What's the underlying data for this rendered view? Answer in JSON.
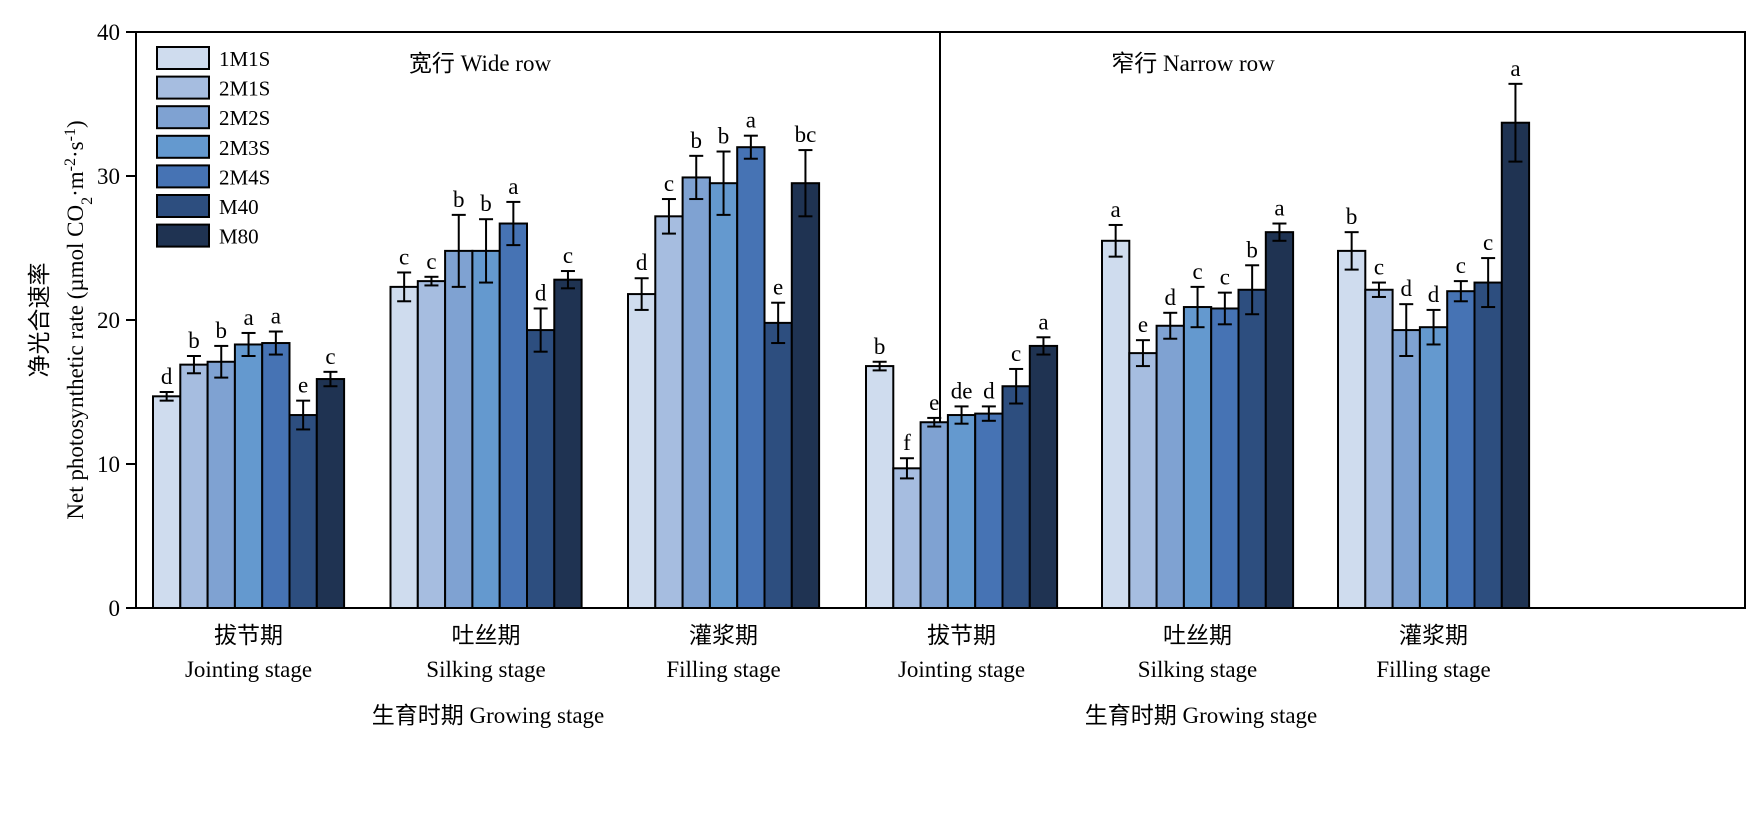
{
  "chart_data": {
    "type": "bar",
    "ylabel_cn": "净光合速率",
    "ylabel_en": "Net photosynthetic rate (µmol CO",
    "ylabel_sub": "2",
    "ylabel_unit_mid": "·m",
    "ylabel_sup1": "-2",
    "ylabel_unit_mid2": "·s",
    "ylabel_sup2": "-1",
    "ylabel_close": ")",
    "ylim": [
      0,
      40
    ],
    "yticks": [
      "0",
      "10",
      "20",
      "30",
      "40"
    ],
    "grid": false,
    "legend_position": "top-left",
    "series_names": [
      "1M1S",
      "2M1S",
      "2M2S",
      "2M3S",
      "2M4S",
      "M40",
      "M80"
    ],
    "colors": [
      "#cfdcee",
      "#a6bde0",
      "#7fa2d2",
      "#6499cf",
      "#4673b4",
      "#2d4e7f",
      "#1f3352"
    ],
    "panels": [
      {
        "title": "宽行 Wide row",
        "xlabel": "生育时期 Growing stage",
        "groups": [
          {
            "label_cn": "拔节期",
            "label_en": "Jointing stage",
            "values": [
              14.7,
              16.9,
              17.1,
              18.3,
              18.4,
              13.4,
              15.9
            ],
            "errors": [
              0.3,
              0.6,
              1.1,
              0.8,
              0.8,
              1.0,
              0.5
            ],
            "letters": [
              "d",
              "b",
              "b",
              "a",
              "a",
              "e",
              "c"
            ]
          },
          {
            "label_cn": "吐丝期",
            "label_en": "Silking stage",
            "values": [
              22.3,
              22.7,
              24.8,
              24.8,
              26.7,
              19.3,
              22.8
            ],
            "errors": [
              1.0,
              0.3,
              2.5,
              2.2,
              1.5,
              1.5,
              0.6
            ],
            "letters": [
              "c",
              "c",
              "b",
              "b",
              "a",
              "d",
              "c"
            ]
          },
          {
            "label_cn": "灌浆期",
            "label_en": "Filling stage",
            "values": [
              21.8,
              27.2,
              29.9,
              29.5,
              32.0,
              19.8,
              29.5
            ],
            "errors": [
              1.1,
              1.2,
              1.5,
              2.2,
              0.8,
              1.4,
              2.3
            ],
            "letters": [
              "d",
              "c",
              "b",
              "b",
              "a",
              "e",
              "bc"
            ]
          }
        ]
      },
      {
        "title": "窄行 Narrow row",
        "xlabel": "生育时期 Growing stage",
        "groups": [
          {
            "label_cn": "拔节期",
            "label_en": "Jointing stage",
            "values": [
              16.8,
              9.7,
              12.9,
              13.4,
              13.5,
              15.4,
              18.2
            ],
            "errors": [
              0.3,
              0.7,
              0.3,
              0.6,
              0.5,
              1.2,
              0.6
            ],
            "letters": [
              "b",
              "f",
              "e",
              "de",
              "d",
              "c",
              "a"
            ]
          },
          {
            "label_cn": "吐丝期",
            "label_en": "Silking stage",
            "values": [
              25.5,
              17.7,
              19.6,
              20.9,
              20.8,
              22.1,
              26.1
            ],
            "errors": [
              1.1,
              0.9,
              0.9,
              1.4,
              1.1,
              1.7,
              0.6
            ],
            "letters": [
              "a",
              "e",
              "d",
              "c",
              "c",
              "b",
              "a"
            ]
          },
          {
            "label_cn": "灌浆期",
            "label_en": "Filling stage",
            "values": [
              24.8,
              22.1,
              19.3,
              19.5,
              22.0,
              22.6,
              33.7
            ],
            "errors": [
              1.3,
              0.5,
              1.8,
              1.2,
              0.7,
              1.7,
              2.7
            ],
            "letters": [
              "b",
              "c",
              "d",
              "d",
              "c",
              "c",
              "a"
            ]
          }
        ]
      }
    ]
  }
}
